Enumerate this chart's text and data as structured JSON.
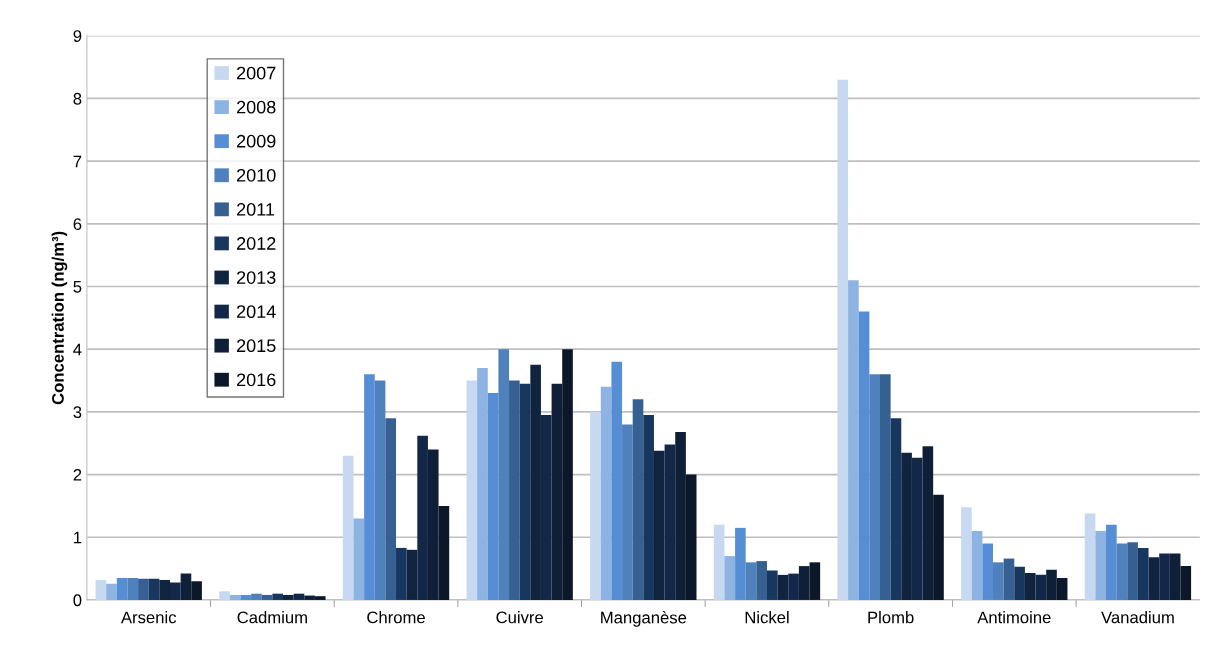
{
  "chart_data": {
    "type": "bar",
    "ylabel": "Concentration (ng/m³)",
    "categories": [
      "Arsenic",
      "Cadmium",
      "Chrome",
      "Cuivre",
      "Manganèse",
      "Nickel",
      "Plomb",
      "Antimoine",
      "Vanadium"
    ],
    "series": [
      {
        "name": "2007",
        "color": "#c6d9f1",
        "values": [
          0.32,
          0.14,
          2.3,
          3.5,
          3.0,
          1.2,
          8.3,
          1.48,
          1.38
        ]
      },
      {
        "name": "2008",
        "color": "#8db3e2",
        "values": [
          0.26,
          0.08,
          1.3,
          3.7,
          3.4,
          0.7,
          5.1,
          1.1,
          1.1
        ]
      },
      {
        "name": "2009",
        "color": "#558ed5",
        "values": [
          0.35,
          0.08,
          3.6,
          3.3,
          3.8,
          1.15,
          4.6,
          0.9,
          1.2
        ]
      },
      {
        "name": "2010",
        "color": "#4f81bd",
        "values": [
          0.35,
          0.1,
          3.5,
          4.0,
          2.8,
          0.6,
          3.6,
          0.6,
          0.9
        ]
      },
      {
        "name": "2011",
        "color": "#376092",
        "values": [
          0.34,
          0.08,
          2.9,
          3.5,
          3.2,
          0.62,
          3.6,
          0.66,
          0.92
        ]
      },
      {
        "name": "2012",
        "color": "#17375e",
        "values": [
          0.34,
          0.1,
          0.83,
          3.45,
          2.95,
          0.47,
          2.9,
          0.53,
          0.83
        ]
      },
      {
        "name": "2013",
        "color": "#10243f",
        "values": [
          0.32,
          0.08,
          0.8,
          3.75,
          2.38,
          0.4,
          2.35,
          0.43,
          0.68
        ]
      },
      {
        "name": "2014",
        "color": "#132849",
        "values": [
          0.28,
          0.1,
          2.62,
          2.95,
          2.48,
          0.42,
          2.27,
          0.4,
          0.74
        ]
      },
      {
        "name": "2015",
        "color": "#0f1f38",
        "values": [
          0.42,
          0.07,
          2.4,
          3.45,
          2.68,
          0.54,
          2.45,
          0.48,
          0.74
        ]
      },
      {
        "name": "2016",
        "color": "#0c1829",
        "values": [
          0.3,
          0.06,
          1.5,
          4.0,
          2.0,
          0.6,
          1.68,
          0.35,
          0.54
        ]
      }
    ],
    "ylim": [
      0,
      9
    ],
    "yticks": [
      0,
      1,
      2,
      3,
      4,
      5,
      6,
      7,
      8,
      9
    ],
    "grid": "y",
    "legend": "top left"
  }
}
